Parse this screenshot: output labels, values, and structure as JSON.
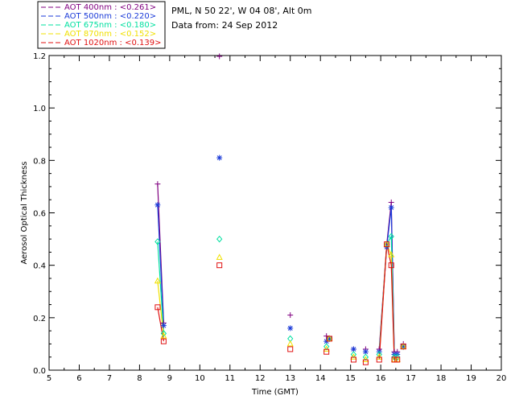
{
  "header": {
    "location": "PML, N 50 22', W 04 08', Alt 0m",
    "date": "Data from: 24 Sep 2012"
  },
  "chart_data": {
    "type": "line",
    "xlabel": "Time (GMT)",
    "ylabel": "Aerosol Optical Thickness",
    "xlim": [
      5,
      20
    ],
    "ylim": [
      0,
      1.2
    ],
    "xticks": [
      "5",
      "6",
      "7",
      "8",
      "9",
      "10",
      "11",
      "12",
      "13",
      "14",
      "15",
      "16",
      "17",
      "18",
      "19",
      "20"
    ],
    "yticks": [
      "0.0",
      "0.2",
      "0.4",
      "0.6",
      "0.8",
      "1.0",
      "1.2"
    ],
    "legend_placement": "top-left-outside",
    "series": [
      {
        "name": "AOT  400nm : <0.261>",
        "color": "#800080",
        "marker": "plus",
        "x": [
          8.6,
          8.8,
          10.65,
          13.0,
          14.2,
          14.3,
          15.1,
          15.5,
          15.95,
          16.2,
          16.35,
          16.45,
          16.55,
          16.75
        ],
        "y": [
          0.71,
          0.18,
          1.22,
          0.21,
          0.13,
          0.12,
          0.08,
          0.08,
          0.08,
          0.48,
          0.64,
          0.07,
          0.07,
          0.1
        ]
      },
      {
        "name": "AOT  500nm : <0.220>",
        "color": "#1a3ad8",
        "marker": "asterisk",
        "x": [
          8.6,
          8.8,
          10.65,
          13.0,
          14.2,
          14.3,
          15.1,
          15.5,
          15.95,
          16.2,
          16.35,
          16.45,
          16.55,
          16.75
        ],
        "y": [
          0.63,
          0.17,
          0.81,
          0.16,
          0.11,
          0.12,
          0.08,
          0.07,
          0.07,
          0.47,
          0.62,
          0.06,
          0.06,
          0.09
        ]
      },
      {
        "name": "AOT  675nm : <0.180>",
        "color": "#00e0a0",
        "marker": "diamond",
        "x": [
          8.6,
          8.8,
          10.65,
          13.0,
          14.2,
          14.3,
          15.1,
          15.5,
          15.95,
          16.2,
          16.35,
          16.45,
          16.55,
          16.75
        ],
        "y": [
          0.49,
          0.14,
          0.5,
          0.12,
          0.09,
          0.12,
          0.06,
          0.05,
          0.06,
          0.48,
          0.51,
          0.05,
          0.05,
          0.09
        ]
      },
      {
        "name": "AOT  870nm : <0.152>",
        "color": "#f0e000",
        "marker": "triangle",
        "x": [
          8.6,
          8.8,
          10.65,
          13.0,
          14.2,
          14.3,
          15.1,
          15.5,
          15.95,
          16.2,
          16.35,
          16.45,
          16.55,
          16.75
        ],
        "y": [
          0.34,
          0.13,
          0.43,
          0.1,
          0.08,
          0.12,
          0.05,
          0.04,
          0.05,
          0.48,
          0.44,
          0.04,
          0.04,
          0.09
        ]
      },
      {
        "name": "AOT 1020nm : <0.139>",
        "color": "#e01010",
        "marker": "square",
        "x": [
          8.6,
          8.8,
          10.65,
          13.0,
          14.2,
          14.3,
          15.1,
          15.5,
          15.95,
          16.2,
          16.35,
          16.45,
          16.55,
          16.75
        ],
        "y": [
          0.24,
          0.11,
          0.4,
          0.08,
          0.07,
          0.12,
          0.04,
          0.03,
          0.04,
          0.48,
          0.4,
          0.04,
          0.04,
          0.09
        ]
      }
    ],
    "line_segments": [
      [
        0,
        1
      ],
      [
        8,
        9,
        10,
        11
      ]
    ]
  }
}
